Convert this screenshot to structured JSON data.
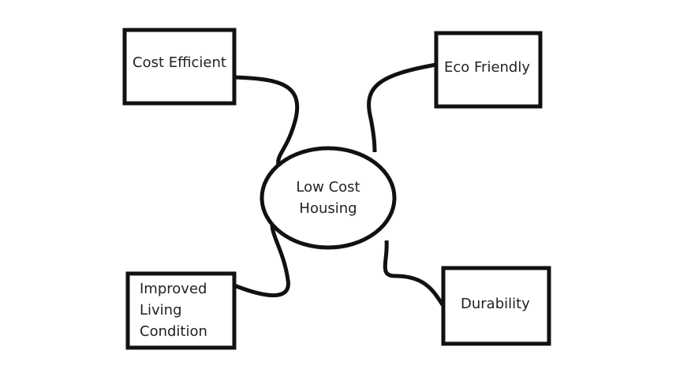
{
  "center": {
    "line1": "Low Cost",
    "line2": "Housing"
  },
  "nodes": {
    "cost_efficient": "Cost Efficient",
    "eco_friendly": "Eco Friendly",
    "improved": {
      "line1": "Improved",
      "line2": "Living",
      "line3": "Condition"
    },
    "durability": "Durability"
  }
}
